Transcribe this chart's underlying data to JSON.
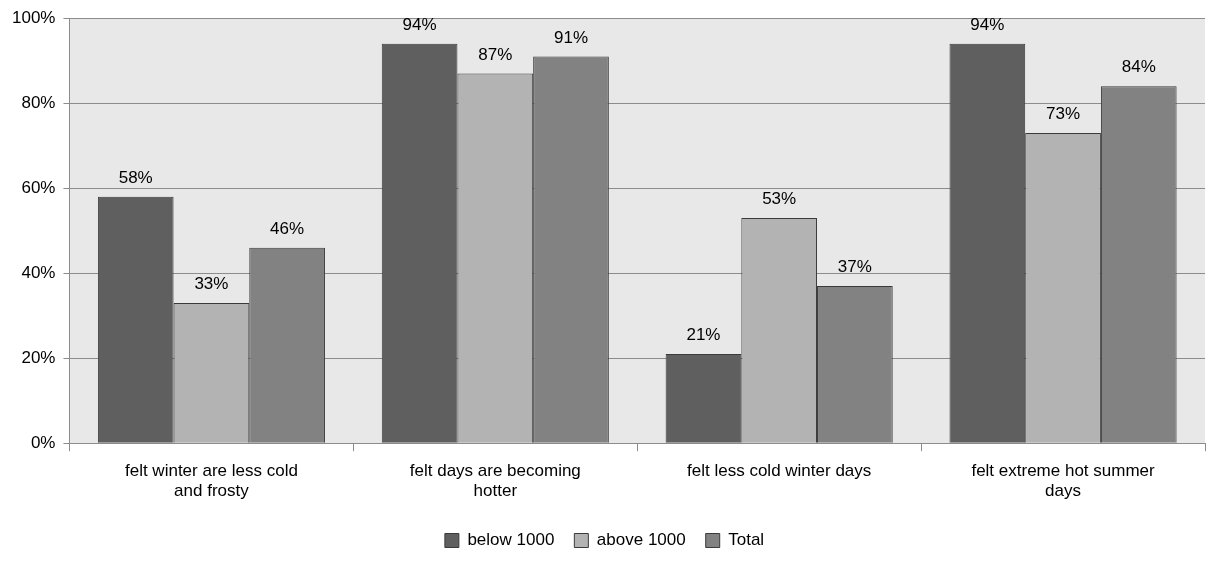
{
  "chart_data": {
    "type": "bar",
    "categories": [
      "felt winter are less cold and frosty",
      "felt days are becoming hotter",
      "felt less cold winter days",
      "felt extreme hot summer days"
    ],
    "series": [
      {
        "name": "below 1000",
        "color": "#5f5f5f",
        "values": [
          58,
          94,
          21,
          94
        ],
        "value_labels": [
          "58%",
          "94%",
          "21%",
          "94%"
        ]
      },
      {
        "name": "above 1000",
        "color": "#b3b3b3",
        "values": [
          33,
          87,
          53,
          73
        ],
        "value_labels": [
          "33%",
          "87%",
          "53%",
          "73%"
        ]
      },
      {
        "name": "Total",
        "color": "#828282",
        "values": [
          46,
          91,
          37,
          84
        ],
        "value_labels": [
          "46%",
          "91%",
          "37%",
          "84%"
        ]
      }
    ],
    "ylim": [
      0,
      100
    ],
    "yticks": [
      {
        "value": 0,
        "label": "0%"
      },
      {
        "value": 20,
        "label": "20%"
      },
      {
        "value": 40,
        "label": "40%"
      },
      {
        "value": 60,
        "label": "60%"
      },
      {
        "value": 80,
        "label": "80%"
      },
      {
        "value": 100,
        "label": "100%"
      }
    ],
    "grid": "y",
    "legend": "bottom"
  }
}
